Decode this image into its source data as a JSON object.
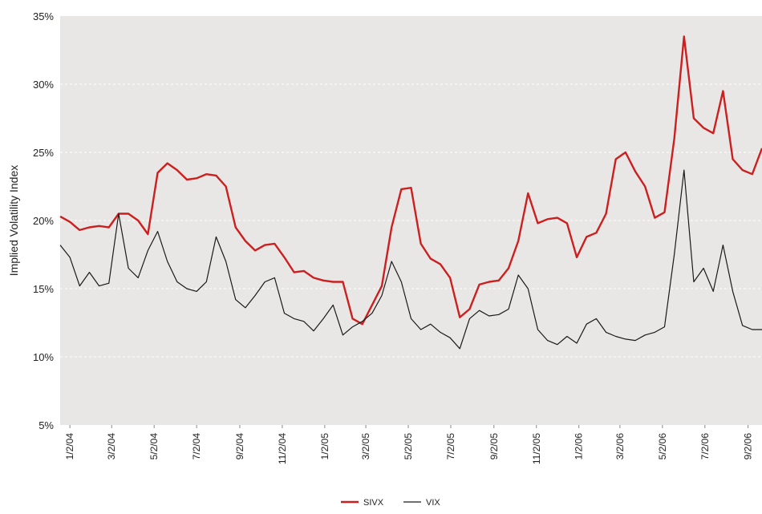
{
  "chart_data": {
    "type": "line",
    "y_label": "Implied Volatility Index",
    "x": [
      "12/19/03",
      "1/2/04",
      "1/16/04",
      "1/30/04",
      "2/13/04",
      "2/27/04",
      "3/12/04",
      "3/26/04",
      "4/9/04",
      "4/23/04",
      "5/7/04",
      "5/21/04",
      "6/4/04",
      "6/18/04",
      "7/2/04",
      "7/16/04",
      "7/30/04",
      "8/13/04",
      "8/27/04",
      "9/10/04",
      "9/24/04",
      "10/8/04",
      "10/22/04",
      "11/5/04",
      "11/19/04",
      "12/3/04",
      "12/17/04",
      "12/31/04",
      "1/14/05",
      "1/28/05",
      "2/11/05",
      "2/25/05",
      "3/11/05",
      "3/25/05",
      "4/8/05",
      "4/22/05",
      "5/6/05",
      "5/20/05",
      "6/3/05",
      "6/17/05",
      "7/1/05",
      "7/15/05",
      "7/29/05",
      "8/12/05",
      "8/26/05",
      "9/9/05",
      "9/23/05",
      "10/7/05",
      "10/21/05",
      "11/4/05",
      "11/18/05",
      "12/2/05",
      "12/16/05",
      "12/30/05",
      "1/13/06",
      "1/27/06",
      "2/10/06",
      "2/24/06",
      "3/10/06",
      "3/24/06",
      "4/7/06",
      "4/21/06",
      "5/5/06",
      "5/19/06",
      "6/2/06",
      "6/16/06",
      "6/30/06",
      "7/14/06",
      "7/28/06",
      "8/11/06",
      "8/25/06",
      "9/8/06",
      "9/22/06"
    ],
    "series": [
      {
        "name": "SIVX",
        "color": "#cc1f1f",
        "values": [
          20.3,
          19.9,
          19.3,
          19.5,
          19.6,
          19.5,
          20.5,
          20.5,
          20.0,
          19.0,
          23.5,
          24.2,
          23.7,
          23.0,
          23.1,
          23.4,
          23.3,
          22.5,
          19.5,
          18.5,
          17.8,
          18.2,
          18.3,
          17.3,
          16.2,
          16.3,
          15.8,
          15.6,
          15.5,
          15.5,
          12.8,
          12.4,
          13.8,
          15.2,
          19.5,
          22.3,
          22.4,
          18.3,
          17.2,
          16.8,
          15.8,
          12.9,
          13.5,
          15.3,
          15.5,
          15.6,
          16.5,
          18.5,
          22.0,
          19.8,
          20.1,
          20.2,
          19.8,
          17.3,
          18.8,
          19.1,
          20.5,
          24.5,
          25.0,
          23.6,
          22.5,
          20.2,
          20.6,
          26.0,
          33.5,
          27.5,
          26.8,
          26.4,
          29.5,
          24.5,
          23.7,
          23.4,
          25.3
        ]
      },
      {
        "name": "VIX",
        "color": "#1a1a1a",
        "values": [
          18.2,
          17.3,
          15.2,
          16.2,
          15.2,
          15.4,
          20.5,
          16.5,
          15.8,
          17.8,
          19.2,
          17.0,
          15.5,
          15.0,
          14.8,
          15.5,
          18.8,
          17.0,
          14.2,
          13.6,
          14.5,
          15.5,
          15.8,
          13.2,
          12.8,
          12.6,
          11.9,
          12.8,
          13.8,
          11.6,
          12.2,
          12.6,
          13.2,
          14.5,
          17.0,
          15.5,
          12.8,
          12.0,
          12.4,
          11.8,
          11.4,
          10.6,
          12.8,
          13.4,
          13.0,
          13.1,
          13.5,
          16.0,
          15.0,
          12.0,
          11.2,
          10.9,
          11.5,
          11.0,
          12.4,
          12.8,
          11.8,
          11.5,
          11.3,
          11.2,
          11.6,
          11.8,
          12.2,
          17.5,
          23.7,
          15.5,
          16.5,
          14.8,
          18.2,
          14.8,
          12.3,
          12.0,
          12.0
        ]
      }
    ],
    "xlim": [
      "12/19/03",
      "9/22/06"
    ],
    "xticks": [
      "1/2/04",
      "3/2/04",
      "5/2/04",
      "7/2/04",
      "9/2/04",
      "11/2/04",
      "1/2/05",
      "3/2/05",
      "5/2/05",
      "7/2/05",
      "9/2/05",
      "11/2/05",
      "1/2/06",
      "3/2/06",
      "5/2/06",
      "7/2/06",
      "9/2/06"
    ],
    "ylim": [
      5,
      35
    ],
    "yticks": [
      {
        "value": 5,
        "label": "5%"
      },
      {
        "value": 10,
        "label": "10%"
      },
      {
        "value": 15,
        "label": "15%"
      },
      {
        "value": 20,
        "label": "20%"
      },
      {
        "value": 25,
        "label": "25%"
      },
      {
        "value": 30,
        "label": "30%"
      },
      {
        "value": 35,
        "label": "35%"
      }
    ],
    "grid": true,
    "legend": "bottom"
  }
}
